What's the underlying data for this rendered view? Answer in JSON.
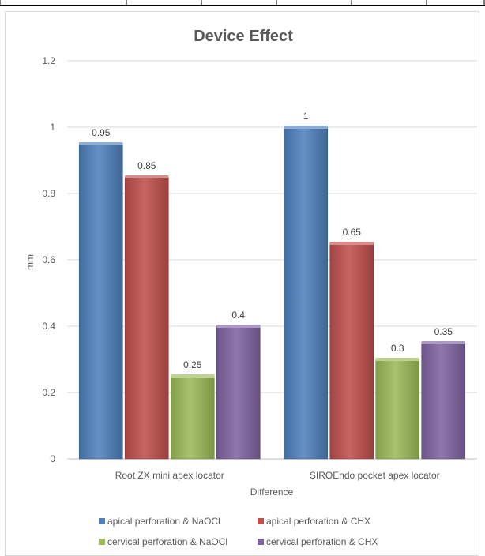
{
  "chart_data": {
    "type": "bar",
    "title": "Device Effect",
    "xlabel": "Difference",
    "ylabel": "mm",
    "ylim": [
      0,
      1.2
    ],
    "yticks": [
      "0",
      "0.2",
      "0.4",
      "0.6",
      "0.8",
      "1",
      "1.2"
    ],
    "categories": [
      "Root ZX mini apex locator",
      "SIROEndo pocket apex locator"
    ],
    "series": [
      {
        "name": "apical perforation & NaOCl",
        "values": [
          0.95,
          1
        ],
        "labels": [
          "0.95",
          "1"
        ],
        "color": "#4f81bd"
      },
      {
        "name": "apical perforation & CHX",
        "values": [
          0.85,
          0.65
        ],
        "labels": [
          "0.85",
          "0.65"
        ],
        "color": "#c0504d"
      },
      {
        "name": "cervical perforation & NaOCl",
        "values": [
          0.25,
          0.3
        ],
        "labels": [
          "0.25",
          "0.3"
        ],
        "color": "#9bbb59"
      },
      {
        "name": "cervical perforation & CHX",
        "values": [
          0.4,
          0.35
        ],
        "labels": [
          "0.4",
          "0.35"
        ],
        "color": "#8064a2"
      }
    ],
    "grid": true,
    "legend": "bottom"
  }
}
